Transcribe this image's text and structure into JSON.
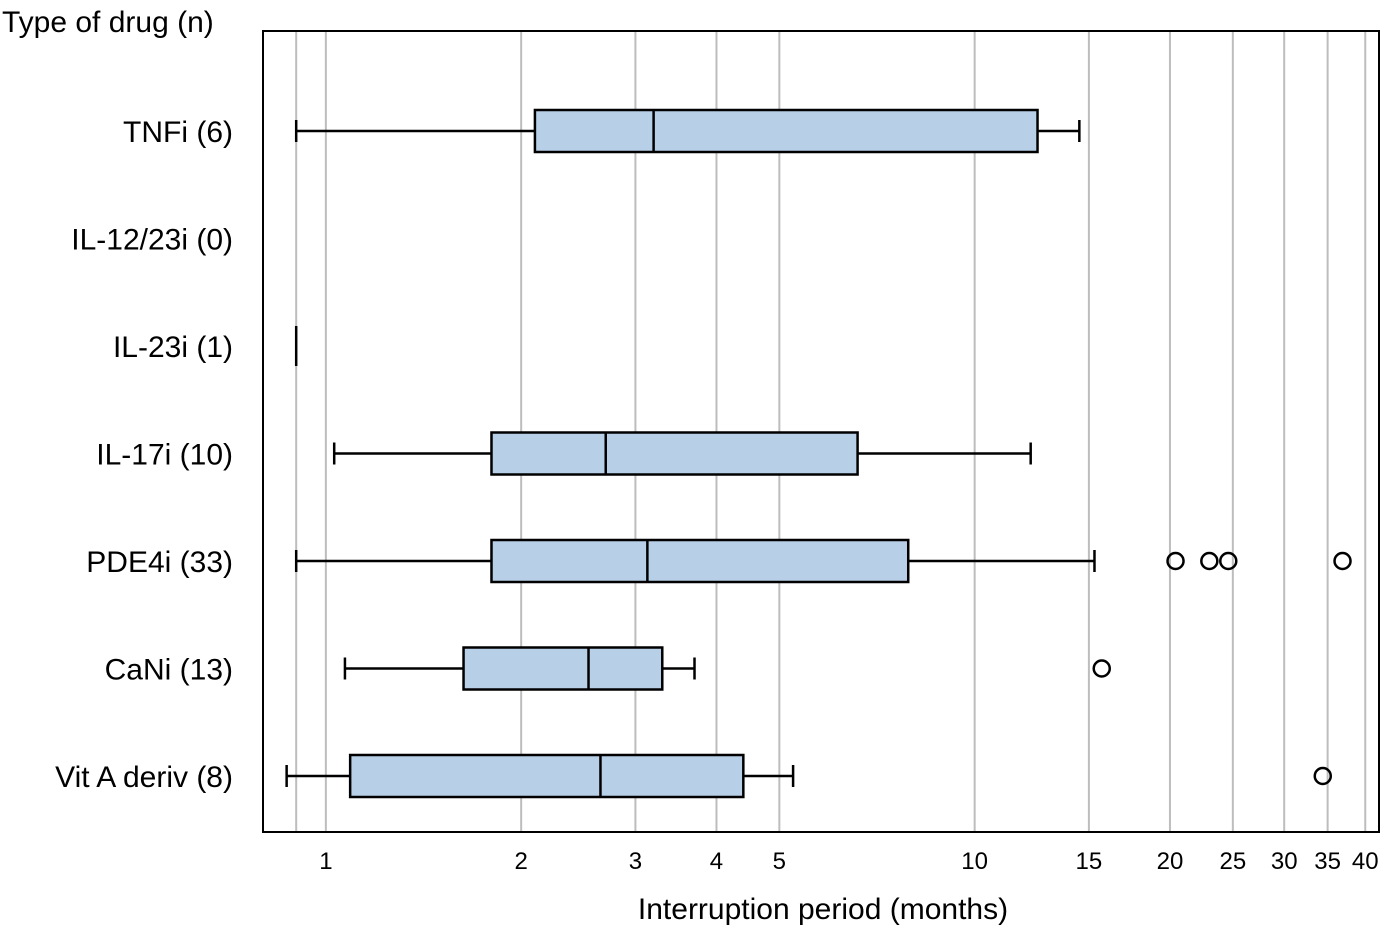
{
  "chart_data": {
    "type": "boxplot",
    "xlabel": "Interruption period (months)",
    "ylabel": "Type of drug (n)",
    "xscale": "log",
    "xlim": [
      0.8,
      42
    ],
    "xticks": [
      1,
      2,
      3,
      4,
      5,
      10,
      15,
      20,
      25,
      30,
      35,
      40
    ],
    "xtick_labels": [
      "1",
      "2",
      "3",
      "4",
      "5",
      "10",
      "15",
      "20",
      "25",
      "30",
      "35",
      "40"
    ],
    "grid": "vertical",
    "box_color": "#b8cfe8",
    "categories": [
      {
        "label": "TNFi (6)",
        "whisker_low": 0.9,
        "q1": 2.1,
        "median": 3.2,
        "q3": 12.5,
        "whisker_high": 14.5,
        "outliers": []
      },
      {
        "label": "IL-12/23i (0)",
        "whisker_low": null,
        "q1": null,
        "median": null,
        "q3": null,
        "whisker_high": null,
        "outliers": []
      },
      {
        "label": "IL-23i (1)",
        "whisker_low": null,
        "q1": null,
        "median": 0.9,
        "q3": null,
        "whisker_high": null,
        "outliers": []
      },
      {
        "label": "IL-17i (10)",
        "whisker_low": 1.03,
        "q1": 1.8,
        "median": 2.7,
        "q3": 6.6,
        "whisker_high": 12.2,
        "outliers": []
      },
      {
        "label": "PDE4i (33)",
        "whisker_low": 0.9,
        "q1": 1.8,
        "median": 3.13,
        "q3": 7.9,
        "whisker_high": 15.3,
        "outliers": [
          20.4,
          23.0,
          24.6,
          36.9
        ]
      },
      {
        "label": "CaNi (13)",
        "whisker_low": 1.07,
        "q1": 1.63,
        "median": 2.54,
        "q3": 3.3,
        "whisker_high": 3.7,
        "outliers": [
          15.7
        ]
      },
      {
        "label": "Vit A deriv (8)",
        "whisker_low": 0.87,
        "q1": 1.09,
        "median": 2.65,
        "q3": 4.4,
        "whisker_high": 5.25,
        "outliers": [
          34.4
        ]
      }
    ]
  }
}
